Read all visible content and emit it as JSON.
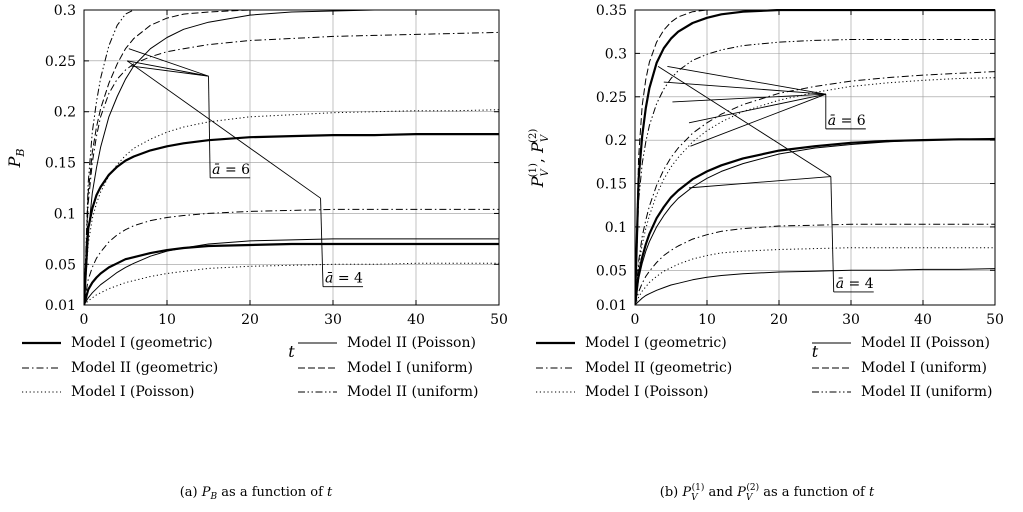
{
  "palette": {
    "ink": "#000000",
    "grid": "#9a9a9a",
    "background": "#ffffff"
  },
  "legend": {
    "entries": [
      {
        "label": "Model I (geometric)",
        "style": "thick"
      },
      {
        "label": "Model II (Poisson)",
        "style": "thin"
      },
      {
        "label": "Model II (geometric)",
        "style": "dashdot"
      },
      {
        "label": "Model I (uniform)",
        "style": "dashed"
      },
      {
        "label": "Model I (Poisson)",
        "style": "dotted"
      },
      {
        "label": "Model II (uniform)",
        "style": "dashdotdot"
      }
    ]
  },
  "chart_data": [
    {
      "panel": "a",
      "type": "line",
      "caption": {
        "tag": "(a)",
        "main": "P",
        "sub": "B",
        "rest": " as a function of ",
        "var": "t"
      },
      "xlabel": "t",
      "ylabel": {
        "main": "P",
        "sub": "B"
      },
      "xlim": [
        0,
        50
      ],
      "ylim": [
        0.01,
        0.3
      ],
      "xticks": [
        "0",
        "10",
        "20",
        "30",
        "40",
        "50"
      ],
      "xtick_values": [
        0,
        10,
        20,
        30,
        40,
        50
      ],
      "yticks": [
        "0.01",
        "0.05",
        "0.1",
        "0.15",
        "0.2",
        "0.25",
        "0.3"
      ],
      "ytick_values": [
        0.01,
        0.05,
        0.1,
        0.15,
        0.2,
        0.25,
        0.3
      ],
      "grid": true,
      "legend_position": "below",
      "x": [
        0,
        0.5,
        1,
        1.5,
        2,
        3,
        4,
        5,
        6,
        8,
        10,
        12,
        15,
        20,
        25,
        30,
        35,
        40,
        45,
        50
      ],
      "series": [
        {
          "style": "thick",
          "values": [
            0.01,
            0.085,
            0.105,
            0.118,
            0.126,
            0.138,
            0.146,
            0.152,
            0.156,
            0.162,
            0.166,
            0.169,
            0.172,
            0.175,
            0.176,
            0.177,
            0.177,
            0.178,
            0.178,
            0.178
          ]
        },
        {
          "style": "dotted",
          "values": [
            0.01,
            0.07,
            0.095,
            0.11,
            0.121,
            0.137,
            0.148,
            0.157,
            0.164,
            0.173,
            0.18,
            0.185,
            0.19,
            0.195,
            0.197,
            0.199,
            0.2,
            0.201,
            0.201,
            0.202
          ]
        },
        {
          "style": "thin",
          "values": [
            0.01,
            0.08,
            0.12,
            0.145,
            0.165,
            0.195,
            0.215,
            0.232,
            0.245,
            0.262,
            0.273,
            0.281,
            0.288,
            0.295,
            0.298,
            0.299,
            0.3,
            0.3,
            0.3,
            0.3
          ]
        },
        {
          "style": "dashed",
          "values": [
            0.01,
            0.12,
            0.16,
            0.185,
            0.203,
            0.228,
            0.247,
            0.262,
            0.272,
            0.285,
            0.292,
            0.296,
            0.298,
            0.3,
            0.3,
            0.3,
            0.3,
            0.3,
            0.3,
            0.3
          ]
        },
        {
          "style": "dashdotdot",
          "values": [
            0.01,
            0.13,
            0.18,
            0.21,
            0.233,
            0.265,
            0.285,
            0.296,
            0.3,
            0.3,
            0.3,
            0.3,
            0.3,
            0.3,
            0.3,
            0.3,
            0.3,
            0.3,
            0.3,
            0.3
          ]
        },
        {
          "style": "dashdot",
          "values": [
            0.01,
            0.11,
            0.15,
            0.176,
            0.195,
            0.218,
            0.232,
            0.241,
            0.247,
            0.254,
            0.259,
            0.262,
            0.266,
            0.27,
            0.272,
            0.274,
            0.275,
            0.276,
            0.277,
            0.278
          ]
        },
        {
          "style": "thick",
          "values": [
            0.01,
            0.025,
            0.032,
            0.037,
            0.041,
            0.047,
            0.051,
            0.055,
            0.057,
            0.061,
            0.064,
            0.066,
            0.068,
            0.069,
            0.07,
            0.07,
            0.07,
            0.07,
            0.07,
            0.07
          ]
        },
        {
          "style": "thin",
          "values": [
            0.01,
            0.017,
            0.022,
            0.026,
            0.03,
            0.036,
            0.042,
            0.047,
            0.051,
            0.058,
            0.063,
            0.066,
            0.07,
            0.073,
            0.074,
            0.075,
            0.075,
            0.075,
            0.075,
            0.075
          ]
        },
        {
          "style": "dotted",
          "values": [
            0.01,
            0.014,
            0.017,
            0.02,
            0.022,
            0.026,
            0.029,
            0.032,
            0.034,
            0.038,
            0.041,
            0.043,
            0.046,
            0.048,
            0.049,
            0.05,
            0.05,
            0.051,
            0.051,
            0.051
          ]
        },
        {
          "style": "dashdot",
          "values": [
            0.01,
            0.035,
            0.047,
            0.056,
            0.062,
            0.072,
            0.079,
            0.084,
            0.088,
            0.093,
            0.096,
            0.098,
            0.1,
            0.102,
            0.103,
            0.104,
            0.104,
            0.104,
            0.104,
            0.104
          ]
        }
      ],
      "annotations": [
        {
          "prefix": "ā",
          "text": " = 6",
          "label_at": [
            15.2,
            0.135
          ],
          "spoke_origin": [
            15,
            0.235
          ],
          "targets": [
            [
              5.4,
              0.262
            ],
            [
              5.2,
              0.25
            ],
            [
              5.6,
              0.245
            ]
          ]
        },
        {
          "prefix": "ā",
          "text": " = 4",
          "label_at": [
            28.8,
            0.028
          ],
          "spoke_origin": [
            28.5,
            0.115
          ],
          "targets": [
            [
              5.2,
              0.25
            ]
          ]
        }
      ]
    },
    {
      "panel": "b",
      "type": "line",
      "caption": {
        "tag": "(b)",
        "parts": [
          "P",
          "V",
          "(1)",
          " and ",
          "P",
          "V",
          "(2)",
          " as a function of ",
          "t"
        ]
      },
      "xlabel": "t",
      "ylabel": {
        "parts": [
          "P",
          "V",
          "(1)",
          ", ",
          "P",
          "V",
          "(2)"
        ]
      },
      "xlim": [
        0,
        50
      ],
      "ylim": [
        0.01,
        0.35
      ],
      "xticks": [
        "0",
        "10",
        "20",
        "30",
        "40",
        "50"
      ],
      "xtick_values": [
        0,
        10,
        20,
        30,
        40,
        50
      ],
      "yticks": [
        "0.01",
        "0.05",
        "0.1",
        "0.15",
        "0.2",
        "0.25",
        "0.3",
        "0.35"
      ],
      "ytick_values": [
        0.01,
        0.05,
        0.1,
        0.15,
        0.2,
        0.25,
        0.3,
        0.35
      ],
      "grid": true,
      "legend_position": "below",
      "x": [
        0,
        0.5,
        1,
        1.5,
        2,
        3,
        4,
        5,
        6,
        8,
        10,
        12,
        15,
        20,
        25,
        30,
        35,
        40,
        45,
        50
      ],
      "series": [
        {
          "style": "thick",
          "values": [
            0.01,
            0.155,
            0.205,
            0.237,
            0.26,
            0.289,
            0.306,
            0.317,
            0.325,
            0.335,
            0.341,
            0.345,
            0.348,
            0.35,
            0.35,
            0.35,
            0.35,
            0.35,
            0.35,
            0.35
          ]
        },
        {
          "style": "dashed",
          "values": [
            0.01,
            0.18,
            0.24,
            0.27,
            0.29,
            0.313,
            0.327,
            0.336,
            0.342,
            0.348,
            0.35,
            0.35,
            0.35,
            0.35,
            0.35,
            0.35,
            0.35,
            0.35,
            0.35,
            0.35
          ]
        },
        {
          "style": "dashdotdot",
          "values": [
            0.01,
            0.13,
            0.173,
            0.198,
            0.217,
            0.242,
            0.259,
            0.271,
            0.28,
            0.292,
            0.299,
            0.304,
            0.309,
            0.313,
            0.315,
            0.316,
            0.316,
            0.316,
            0.316,
            0.316
          ]
        },
        {
          "style": "dashdot",
          "values": [
            0.01,
            0.06,
            0.089,
            0.108,
            0.124,
            0.148,
            0.166,
            0.18,
            0.191,
            0.208,
            0.22,
            0.23,
            0.241,
            0.254,
            0.262,
            0.268,
            0.272,
            0.275,
            0.277,
            0.279
          ]
        },
        {
          "style": "dotted",
          "values": [
            0.01,
            0.055,
            0.08,
            0.098,
            0.113,
            0.137,
            0.155,
            0.169,
            0.18,
            0.198,
            0.211,
            0.221,
            0.233,
            0.246,
            0.255,
            0.262,
            0.266,
            0.269,
            0.271,
            0.272
          ]
        },
        {
          "style": "thin",
          "values": [
            0.01,
            0.04,
            0.058,
            0.072,
            0.083,
            0.1,
            0.113,
            0.124,
            0.133,
            0.146,
            0.156,
            0.164,
            0.173,
            0.184,
            0.191,
            0.195,
            0.198,
            0.2,
            0.201,
            0.202
          ]
        },
        {
          "style": "thick",
          "values": [
            0.01,
            0.045,
            0.065,
            0.08,
            0.092,
            0.11,
            0.123,
            0.134,
            0.142,
            0.155,
            0.164,
            0.171,
            0.179,
            0.188,
            0.193,
            0.197,
            0.199,
            0.2,
            0.201,
            0.201
          ]
        },
        {
          "style": "dashdot",
          "values": [
            0.01,
            0.025,
            0.035,
            0.043,
            0.049,
            0.059,
            0.067,
            0.073,
            0.078,
            0.086,
            0.091,
            0.095,
            0.098,
            0.101,
            0.102,
            0.103,
            0.103,
            0.103,
            0.103,
            0.103
          ]
        },
        {
          "style": "dotted",
          "values": [
            0.01,
            0.019,
            0.026,
            0.031,
            0.036,
            0.043,
            0.049,
            0.053,
            0.057,
            0.063,
            0.067,
            0.07,
            0.072,
            0.074,
            0.075,
            0.076,
            0.076,
            0.076,
            0.076,
            0.076
          ]
        },
        {
          "style": "thin",
          "values": [
            0.01,
            0.014,
            0.018,
            0.021,
            0.023,
            0.027,
            0.03,
            0.033,
            0.035,
            0.039,
            0.042,
            0.044,
            0.046,
            0.048,
            0.049,
            0.05,
            0.05,
            0.051,
            0.051,
            0.052
          ]
        }
      ],
      "annotations": [
        {
          "prefix": "ā",
          "text": " = 6",
          "label_at": [
            26.5,
            0.213
          ],
          "spoke_origin": [
            26.5,
            0.253
          ],
          "targets": [
            [
              4.0,
              0.267
            ],
            [
              4.5,
              0.285
            ],
            [
              7.5,
              0.22
            ],
            [
              7.7,
              0.193
            ],
            [
              5.2,
              0.244
            ]
          ]
        },
        {
          "prefix": "ā",
          "text": " = 4",
          "label_at": [
            27.6,
            0.025
          ],
          "spoke_origin": [
            27.2,
            0.158
          ],
          "targets": [
            [
              3.2,
              0.285
            ],
            [
              7.5,
              0.145
            ]
          ]
        }
      ]
    }
  ]
}
